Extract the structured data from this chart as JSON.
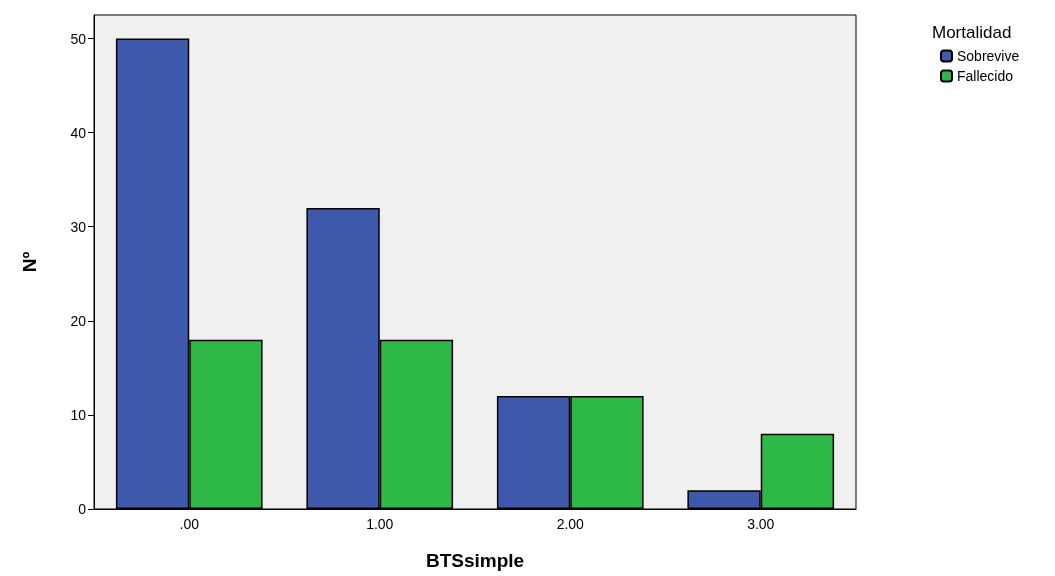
{
  "chart_data": {
    "type": "bar",
    "xlabel": "BTSsimple",
    "ylabel": "Nº",
    "legend_title": "Mortalidad",
    "categories": [
      ".00",
      "1.00",
      "2.00",
      "3.00"
    ],
    "series": [
      {
        "name": "Sobrevive",
        "color": "#3e58ac",
        "values": [
          50,
          32,
          12,
          2
        ]
      },
      {
        "name": "Fallecido",
        "color": "#2eb848",
        "values": [
          18,
          18,
          12,
          8
        ]
      }
    ],
    "ylim": [
      0,
      52.5
    ],
    "yticks": [
      0,
      10,
      20,
      30,
      40,
      50
    ],
    "grid": false,
    "legend": "top right"
  }
}
